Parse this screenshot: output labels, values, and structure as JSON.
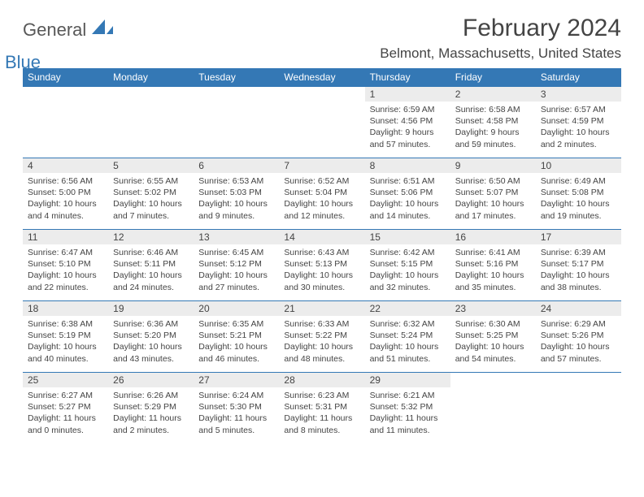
{
  "logo": {
    "text1": "General",
    "text2": "Blue"
  },
  "title": "February 2024",
  "location": "Belmont, Massachusetts, United States",
  "colors": {
    "header_bg": "#3478b5",
    "header_text": "#ffffff",
    "daynum_bg": "#ececec",
    "rule": "#3478b5",
    "body_text": "#444444"
  },
  "day_headers": [
    "Sunday",
    "Monday",
    "Tuesday",
    "Wednesday",
    "Thursday",
    "Friday",
    "Saturday"
  ],
  "weeks": [
    [
      null,
      null,
      null,
      null,
      {
        "n": "1",
        "sunrise": "6:59 AM",
        "sunset": "4:56 PM",
        "dl": "9 hours and 57 minutes."
      },
      {
        "n": "2",
        "sunrise": "6:58 AM",
        "sunset": "4:58 PM",
        "dl": "9 hours and 59 minutes."
      },
      {
        "n": "3",
        "sunrise": "6:57 AM",
        "sunset": "4:59 PM",
        "dl": "10 hours and 2 minutes."
      }
    ],
    [
      {
        "n": "4",
        "sunrise": "6:56 AM",
        "sunset": "5:00 PM",
        "dl": "10 hours and 4 minutes."
      },
      {
        "n": "5",
        "sunrise": "6:55 AM",
        "sunset": "5:02 PM",
        "dl": "10 hours and 7 minutes."
      },
      {
        "n": "6",
        "sunrise": "6:53 AM",
        "sunset": "5:03 PM",
        "dl": "10 hours and 9 minutes."
      },
      {
        "n": "7",
        "sunrise": "6:52 AM",
        "sunset": "5:04 PM",
        "dl": "10 hours and 12 minutes."
      },
      {
        "n": "8",
        "sunrise": "6:51 AM",
        "sunset": "5:06 PM",
        "dl": "10 hours and 14 minutes."
      },
      {
        "n": "9",
        "sunrise": "6:50 AM",
        "sunset": "5:07 PM",
        "dl": "10 hours and 17 minutes."
      },
      {
        "n": "10",
        "sunrise": "6:49 AM",
        "sunset": "5:08 PM",
        "dl": "10 hours and 19 minutes."
      }
    ],
    [
      {
        "n": "11",
        "sunrise": "6:47 AM",
        "sunset": "5:10 PM",
        "dl": "10 hours and 22 minutes."
      },
      {
        "n": "12",
        "sunrise": "6:46 AM",
        "sunset": "5:11 PM",
        "dl": "10 hours and 24 minutes."
      },
      {
        "n": "13",
        "sunrise": "6:45 AM",
        "sunset": "5:12 PM",
        "dl": "10 hours and 27 minutes."
      },
      {
        "n": "14",
        "sunrise": "6:43 AM",
        "sunset": "5:13 PM",
        "dl": "10 hours and 30 minutes."
      },
      {
        "n": "15",
        "sunrise": "6:42 AM",
        "sunset": "5:15 PM",
        "dl": "10 hours and 32 minutes."
      },
      {
        "n": "16",
        "sunrise": "6:41 AM",
        "sunset": "5:16 PM",
        "dl": "10 hours and 35 minutes."
      },
      {
        "n": "17",
        "sunrise": "6:39 AM",
        "sunset": "5:17 PM",
        "dl": "10 hours and 38 minutes."
      }
    ],
    [
      {
        "n": "18",
        "sunrise": "6:38 AM",
        "sunset": "5:19 PM",
        "dl": "10 hours and 40 minutes."
      },
      {
        "n": "19",
        "sunrise": "6:36 AM",
        "sunset": "5:20 PM",
        "dl": "10 hours and 43 minutes."
      },
      {
        "n": "20",
        "sunrise": "6:35 AM",
        "sunset": "5:21 PM",
        "dl": "10 hours and 46 minutes."
      },
      {
        "n": "21",
        "sunrise": "6:33 AM",
        "sunset": "5:22 PM",
        "dl": "10 hours and 48 minutes."
      },
      {
        "n": "22",
        "sunrise": "6:32 AM",
        "sunset": "5:24 PM",
        "dl": "10 hours and 51 minutes."
      },
      {
        "n": "23",
        "sunrise": "6:30 AM",
        "sunset": "5:25 PM",
        "dl": "10 hours and 54 minutes."
      },
      {
        "n": "24",
        "sunrise": "6:29 AM",
        "sunset": "5:26 PM",
        "dl": "10 hours and 57 minutes."
      }
    ],
    [
      {
        "n": "25",
        "sunrise": "6:27 AM",
        "sunset": "5:27 PM",
        "dl": "11 hours and 0 minutes."
      },
      {
        "n": "26",
        "sunrise": "6:26 AM",
        "sunset": "5:29 PM",
        "dl": "11 hours and 2 minutes."
      },
      {
        "n": "27",
        "sunrise": "6:24 AM",
        "sunset": "5:30 PM",
        "dl": "11 hours and 5 minutes."
      },
      {
        "n": "28",
        "sunrise": "6:23 AM",
        "sunset": "5:31 PM",
        "dl": "11 hours and 8 minutes."
      },
      {
        "n": "29",
        "sunrise": "6:21 AM",
        "sunset": "5:32 PM",
        "dl": "11 hours and 11 minutes."
      },
      null,
      null
    ]
  ],
  "labels": {
    "sunrise": "Sunrise: ",
    "sunset": "Sunset: ",
    "daylight": "Daylight: "
  }
}
